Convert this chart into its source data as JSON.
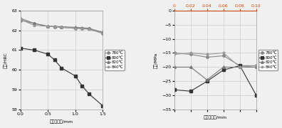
{
  "left": {
    "x": [
      0,
      0.25,
      0.5,
      0.625,
      0.75,
      1.0,
      1.125,
      1.25,
      1.5
    ],
    "series": {
      "780": [
        62.5,
        62.35,
        62.2,
        62.18,
        62.15,
        62.1,
        62.1,
        62.08,
        61.85
      ],
      "800": [
        61.1,
        61.0,
        60.8,
        60.5,
        60.1,
        59.7,
        59.2,
        58.8,
        58.2
      ],
      "820": [
        62.6,
        62.35,
        62.2,
        62.2,
        62.18,
        62.15,
        62.13,
        62.1,
        61.9
      ],
      "840": [
        62.55,
        62.25,
        62.2,
        62.18,
        62.15,
        62.1,
        62.08,
        62.05,
        61.85
      ]
    },
    "ylim": [
      58,
      63
    ],
    "yticks": [
      58,
      59,
      60,
      61,
      62,
      63
    ],
    "xlim": [
      0,
      1.5
    ],
    "xticks": [
      0,
      0.5,
      1.0,
      1.5
    ],
    "ylabel": "硬度/HRC",
    "xlabel": "距齿面距离/mm",
    "legend_labels": [
      "780℃",
      "800℃",
      "820℃",
      "840℃"
    ]
  },
  "right": {
    "x": [
      0,
      0.02,
      0.04,
      0.06,
      0.08,
      0.1
    ],
    "series": {
      "780": [
        -15.0,
        -15.5,
        -16.5,
        -16.0,
        -19.5,
        -19.5
      ],
      "800": [
        -28.0,
        -28.5,
        -25.0,
        -21.0,
        -19.5,
        -30.0
      ],
      "820": [
        -20.0,
        -20.0,
        -24.5,
        -20.0,
        -20.0,
        -20.0
      ],
      "840": [
        -15.5,
        -15.0,
        -15.5,
        -15.0,
        -20.0,
        -19.5
      ]
    },
    "ylim": [
      -35,
      0
    ],
    "yticks": [
      -35,
      -30,
      -25,
      -20,
      -15,
      -10,
      -5,
      0
    ],
    "xlim": [
      0,
      0.1
    ],
    "xticks": [
      0,
      0.02,
      0.04,
      0.06,
      0.08,
      0.1
    ],
    "ylabel": "应力/MPa",
    "xlabel": "距齿面距离/mm",
    "legend_labels": [
      "780℃",
      "800℃",
      "820℃",
      "840℃"
    ]
  },
  "markers": [
    "o",
    "s",
    "^",
    "*"
  ],
  "colors": [
    "#888888",
    "#333333",
    "#777777",
    "#999999"
  ],
  "bg_color": "#f0f0f0",
  "grid_color": "#cccccc",
  "top_tick_color": "#cc4400"
}
